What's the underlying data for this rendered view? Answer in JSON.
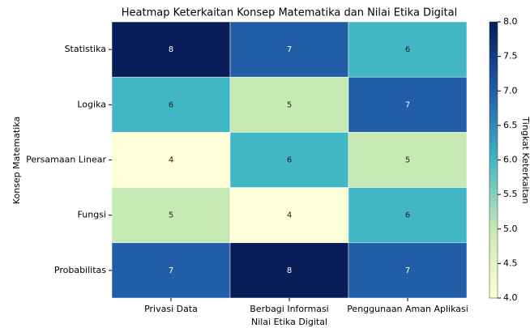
{
  "chart_data": {
    "type": "heatmap",
    "title": "Heatmap Keterkaitan Konsep Matematika dan Nilai Etika Digital",
    "xlabel": "Nilai Etika Digital",
    "ylabel": "Konsep Matematika",
    "colorbar_label": "Tingkat Keterkaitan",
    "x_categories": [
      "Privasi Data",
      "Berbagi Informasi",
      "Penggunaan Aman Aplikasi"
    ],
    "y_categories": [
      "Statistika",
      "Logika",
      "Persamaan Linear",
      "Fungsi",
      "Probabilitas"
    ],
    "values": [
      [
        8,
        7,
        6
      ],
      [
        6,
        5,
        7
      ],
      [
        4,
        6,
        5
      ],
      [
        5,
        4,
        6
      ],
      [
        7,
        8,
        7
      ]
    ],
    "zlim": [
      4,
      8
    ],
    "zticks": [
      {
        "value": 4,
        "label": "4.0"
      },
      {
        "value": 4.5,
        "label": "4.5"
      },
      {
        "value": 5,
        "label": "5.0"
      },
      {
        "value": 5.5,
        "label": "5.5"
      },
      {
        "value": 6,
        "label": "6.0"
      },
      {
        "value": 6.5,
        "label": "6.5"
      },
      {
        "value": 7,
        "label": "7.0"
      },
      {
        "value": 7.5,
        "label": "7.5"
      },
      {
        "value": 8,
        "label": "8.0"
      }
    ],
    "colorscale": [
      "#ffffd9",
      "#c7e9b4",
      "#41b6c4",
      "#225ea8",
      "#081d58"
    ]
  }
}
